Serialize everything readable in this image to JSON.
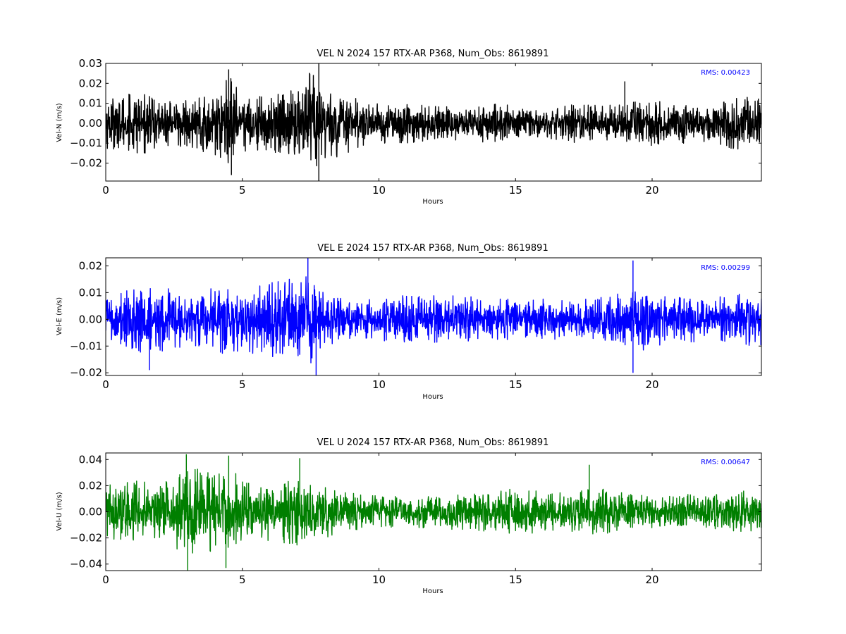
{
  "chart_data": [
    {
      "type": "line",
      "title": "VEL N 2024 157 RTX-AR  P368, Num_Obs: 8619891",
      "xlabel": "Hours",
      "ylabel": "Vel-N (m/s)",
      "xlim": [
        0,
        24
      ],
      "ylim": [
        -0.029,
        0.03
      ],
      "xticks": [
        0,
        5,
        10,
        15,
        20
      ],
      "xtick_labels": [
        "0",
        "5",
        "10",
        "15",
        "20"
      ],
      "yticks": [
        -0.02,
        -0.01,
        0.0,
        0.01,
        0.02,
        0.03
      ],
      "ytick_labels": [
        "−0.02",
        "−0.01",
        "0.00",
        "0.01",
        "0.02",
        "0.03"
      ],
      "annotation": "RMS:  0.00423",
      "annotation_color": "#0000ff",
      "color": "#000000",
      "series": [
        {
          "x": [
            0,
            1,
            2,
            3,
            4,
            4.5,
            5,
            6,
            7,
            7.5,
            8,
            9,
            10,
            11,
            12,
            13,
            14,
            15,
            16,
            17,
            18,
            19,
            20,
            21,
            22,
            23,
            24
          ],
          "envelope_amplitude": [
            0.013,
            0.016,
            0.014,
            0.012,
            0.016,
            0.024,
            0.014,
            0.014,
            0.018,
            0.026,
            0.02,
            0.014,
            0.01,
            0.01,
            0.009,
            0.009,
            0.01,
            0.009,
            0.007,
            0.01,
            0.009,
            0.01,
            0.012,
            0.011,
            0.01,
            0.013,
            0.014
          ],
          "extreme_values": [
            [
              7.8,
              0.03
            ],
            [
              7.8,
              -0.029
            ],
            [
              4.5,
              0.027
            ],
            [
              4.6,
              -0.026
            ],
            [
              19.0,
              0.021
            ]
          ]
        }
      ]
    },
    {
      "type": "line",
      "title": "VEL E 2024 157 RTX-AR  P368, Num_Obs: 8619891",
      "xlabel": "Hours",
      "ylabel": "Vel-E (m/s)",
      "xlim": [
        0,
        24
      ],
      "ylim": [
        -0.021,
        0.023
      ],
      "xticks": [
        0,
        5,
        10,
        15,
        20
      ],
      "xtick_labels": [
        "0",
        "5",
        "10",
        "15",
        "20"
      ],
      "yticks": [
        -0.02,
        -0.01,
        0.0,
        0.01,
        0.02
      ],
      "ytick_labels": [
        "−0.02",
        "−0.01",
        "0.00",
        "0.01",
        "0.02"
      ],
      "annotation": "RMS:  0.00299",
      "annotation_color": "#0000ff",
      "color": "#0000ff",
      "series": [
        {
          "x": [
            0,
            1,
            2,
            3,
            4,
            5,
            6,
            7,
            7.5,
            8,
            9,
            10,
            11,
            12,
            13,
            14,
            15,
            16,
            17,
            18,
            19,
            19.5,
            20,
            21,
            22,
            23,
            24
          ],
          "envelope_amplitude": [
            0.008,
            0.012,
            0.013,
            0.011,
            0.013,
            0.012,
            0.014,
            0.016,
            0.019,
            0.01,
            0.007,
            0.008,
            0.009,
            0.009,
            0.009,
            0.008,
            0.008,
            0.008,
            0.007,
            0.008,
            0.01,
            0.013,
            0.011,
            0.009,
            0.008,
            0.009,
            0.012
          ],
          "extreme_values": [
            [
              7.4,
              0.023
            ],
            [
              7.7,
              -0.021
            ],
            [
              19.3,
              0.022
            ],
            [
              19.3,
              -0.02
            ],
            [
              1.6,
              -0.019
            ]
          ]
        }
      ]
    },
    {
      "type": "line",
      "title": "VEL U 2024 157 RTX-AR  P368, Num_Obs: 8619891",
      "xlabel": "Hours",
      "ylabel": "Vel-U (m/s)",
      "xlim": [
        0,
        24
      ],
      "ylim": [
        -0.045,
        0.045
      ],
      "xticks": [
        0,
        5,
        10,
        15,
        20
      ],
      "xtick_labels": [
        "0",
        "5",
        "10",
        "15",
        "20"
      ],
      "yticks": [
        -0.04,
        -0.02,
        0.0,
        0.02,
        0.04
      ],
      "ytick_labels": [
        "−0.04",
        "−0.02",
        "0.00",
        "0.02",
        "0.04"
      ],
      "annotation": "RMS:  0.00647",
      "annotation_color": "#0000ff",
      "color": "#007f00",
      "series": [
        {
          "x": [
            0,
            1,
            2,
            3,
            4,
            4.5,
            5,
            6,
            7,
            8,
            9,
            10,
            11,
            12,
            13,
            14,
            15,
            16,
            17,
            18,
            19,
            20,
            21,
            22,
            23,
            24
          ],
          "envelope_amplitude": [
            0.02,
            0.024,
            0.022,
            0.034,
            0.03,
            0.036,
            0.024,
            0.022,
            0.026,
            0.02,
            0.016,
            0.012,
            0.012,
            0.013,
            0.014,
            0.015,
            0.018,
            0.016,
            0.016,
            0.018,
            0.015,
            0.014,
            0.014,
            0.013,
            0.016,
            0.017
          ],
          "extreme_values": [
            [
              2.95,
              0.044
            ],
            [
              3.0,
              -0.045
            ],
            [
              4.5,
              0.043
            ],
            [
              4.4,
              -0.043
            ],
            [
              7.1,
              0.041
            ],
            [
              17.7,
              0.036
            ]
          ]
        }
      ]
    }
  ]
}
